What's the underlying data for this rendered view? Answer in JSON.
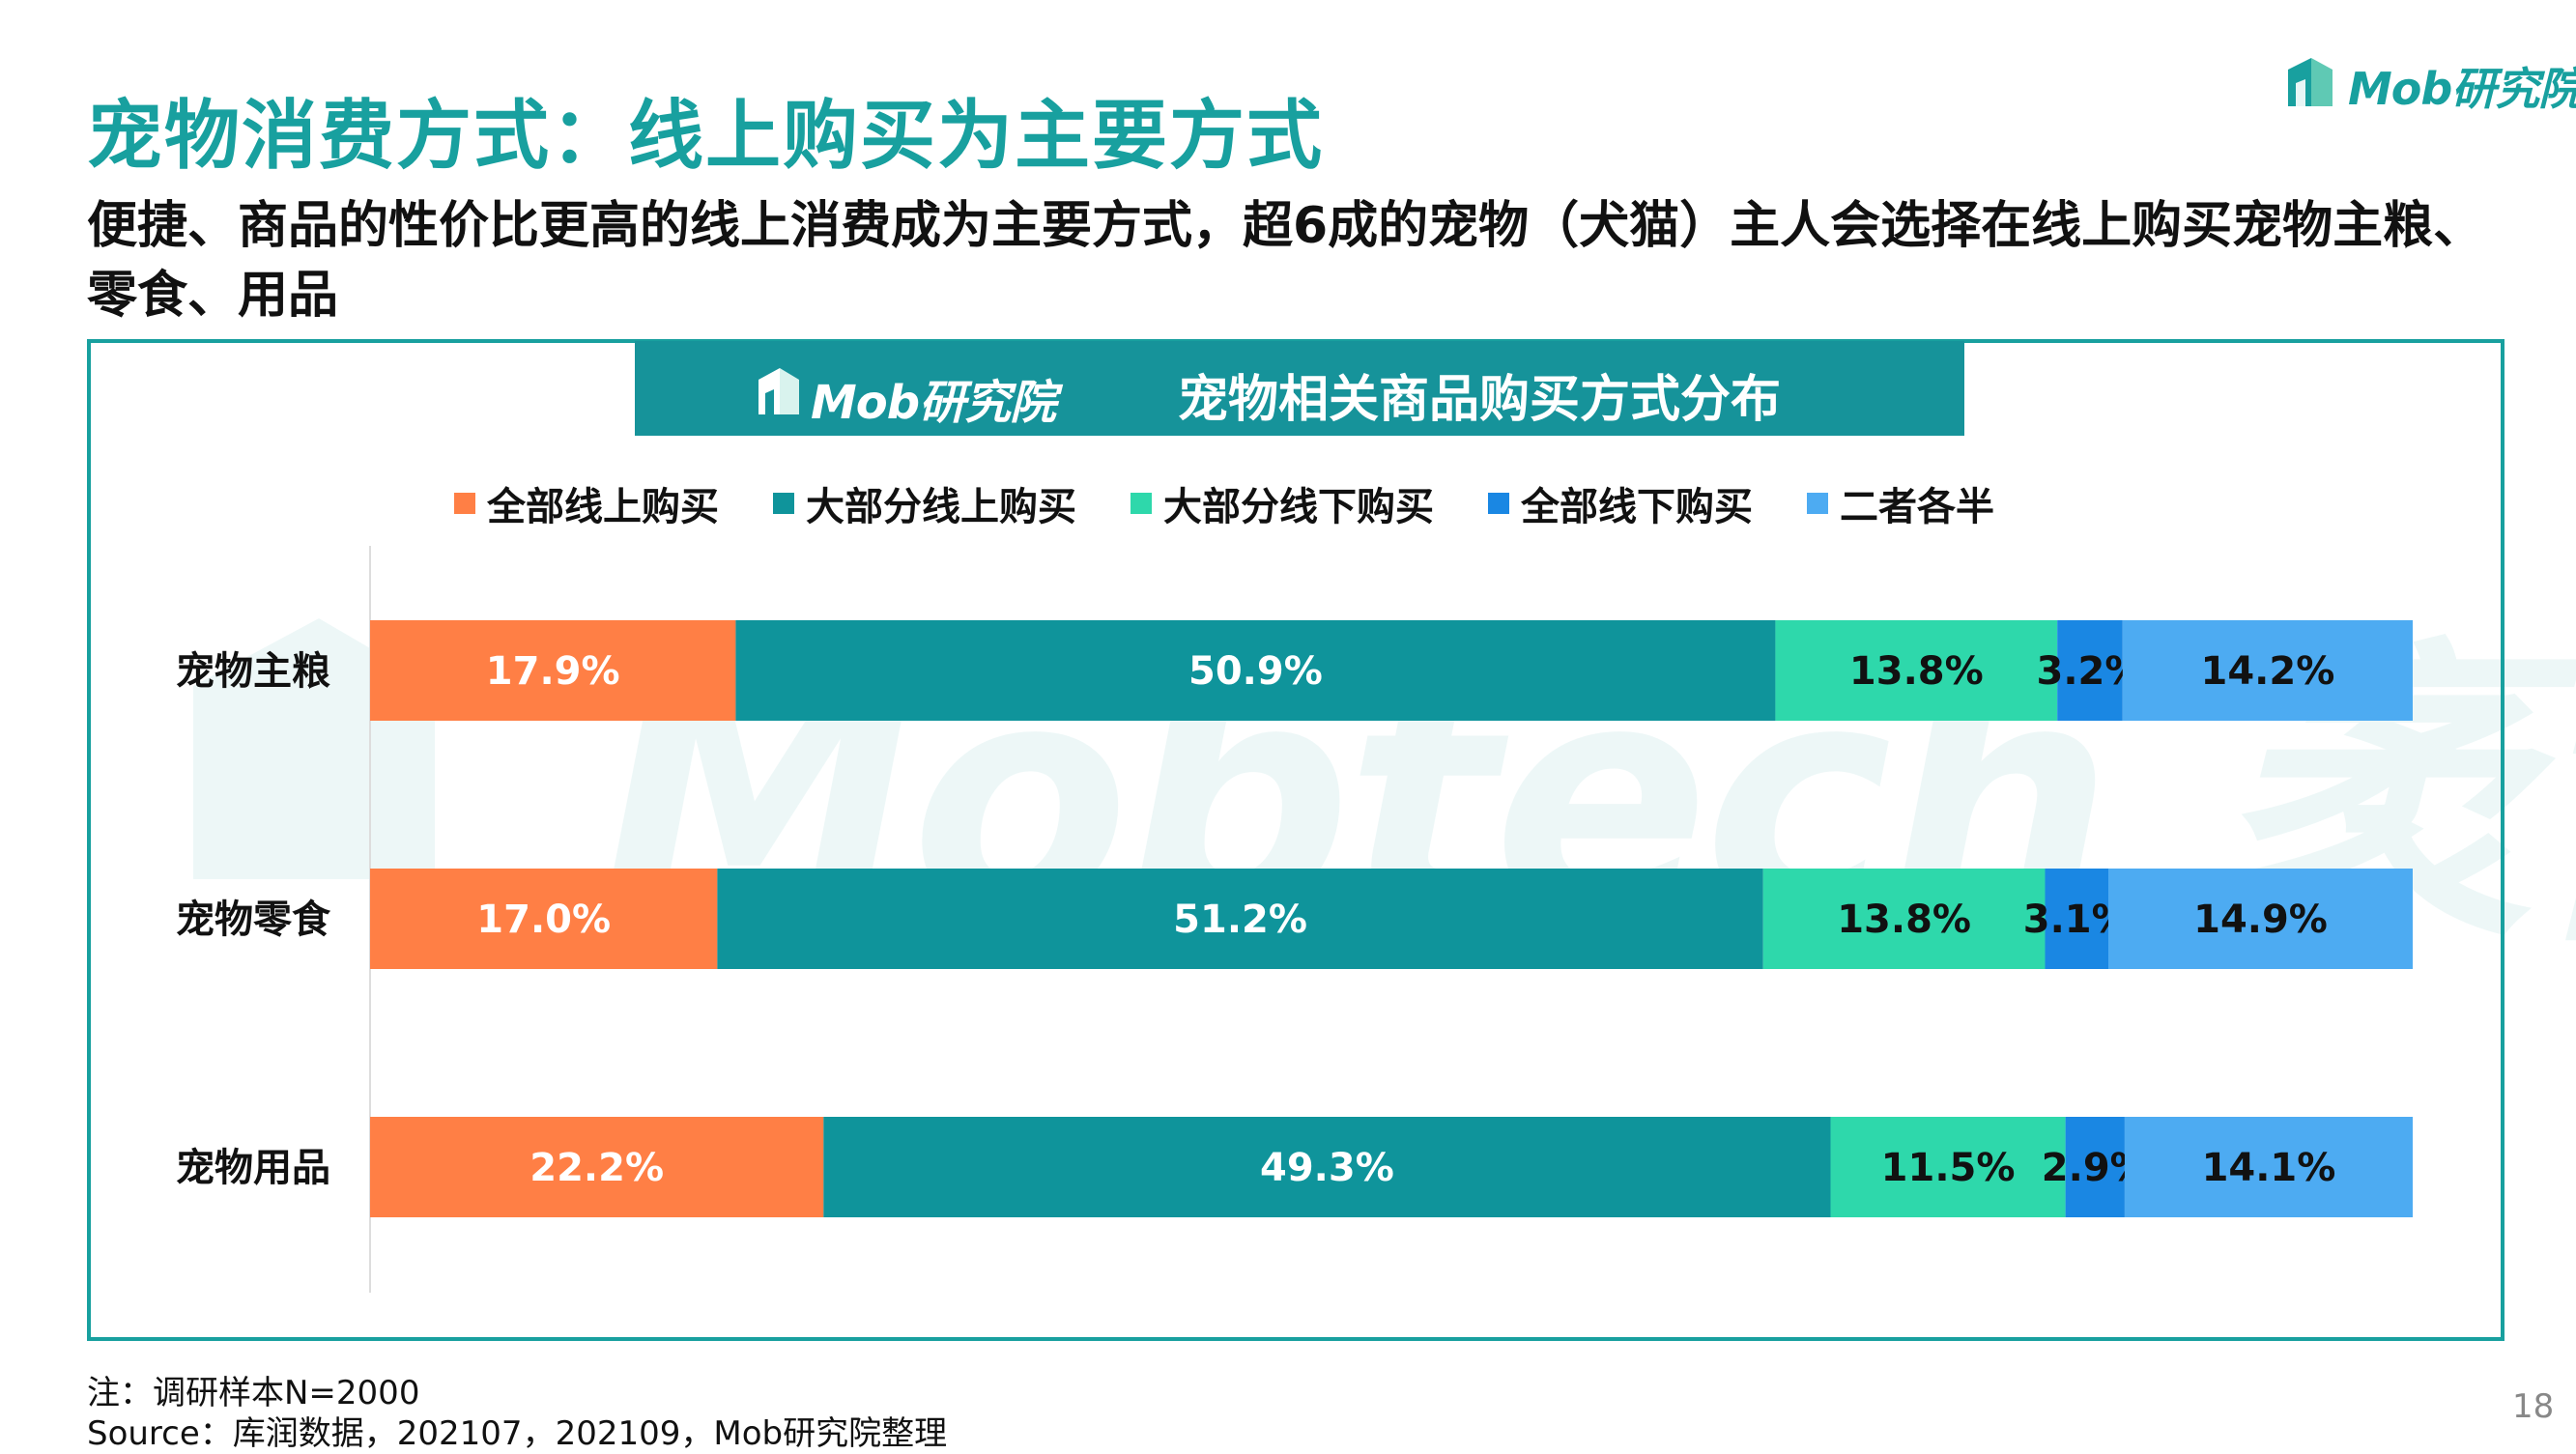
{
  "slide": {
    "title": "宠物消费方式：线上购买为主要方式",
    "subtitle": "便捷、商品的性价比更高的线上消费成为主要方式，超6成的宠物（犬猫）主人会选择在线上购买宠物主粮、零食、用品",
    "brand_logo": "Mob研究院",
    "footnote": "注：调研样本N=2000",
    "source": "Source：库润数据，202107，202109，Mob研究院整理",
    "page_number": "18",
    "watermark": "Mobtech 袤博",
    "accent_color": "#18a09f"
  },
  "panel": {
    "logo": "Mob研究院",
    "title": "宠物相关商品购买方式分布"
  },
  "chart_data": {
    "type": "bar",
    "orientation": "horizontal",
    "stacked": true,
    "percent_stacked": true,
    "title": "宠物相关商品购买方式分布",
    "categories": [
      "宠物主粮",
      "宠物零食",
      "宠物用品"
    ],
    "series": [
      {
        "name": "全部线上购买",
        "color": "#ff7f45",
        "values": [
          17.9,
          17.0,
          22.2
        ],
        "labels": [
          "17.9%",
          "17.0%",
          "22.2%"
        ],
        "label_color": "#ffffff"
      },
      {
        "name": "大部分线上购买",
        "color": "#0f949b",
        "values": [
          50.9,
          51.2,
          49.3
        ],
        "labels": [
          "50.9%",
          "51.2%",
          "49.3%"
        ],
        "label_color": "#ffffff"
      },
      {
        "name": "大部分线下购买",
        "color": "#2ed8ab",
        "values": [
          13.8,
          13.8,
          11.5
        ],
        "labels": [
          "13.8%",
          "13.8%",
          "11.5%"
        ],
        "label_color": "#111111"
      },
      {
        "name": "全部线下购买",
        "color": "#1a87e3",
        "values": [
          3.2,
          3.1,
          2.9
        ],
        "labels": [
          "3.2%",
          "3.1%",
          "2.9%"
        ],
        "label_color": "#111111"
      },
      {
        "name": "二者各半",
        "color": "#4dabf2",
        "values": [
          14.2,
          14.9,
          14.1
        ],
        "labels": [
          "14.2%",
          "14.9%",
          "14.1%"
        ],
        "label_color": "#111111"
      }
    ],
    "xlim": [
      0,
      100
    ],
    "legend_position": "top",
    "grid": false
  }
}
